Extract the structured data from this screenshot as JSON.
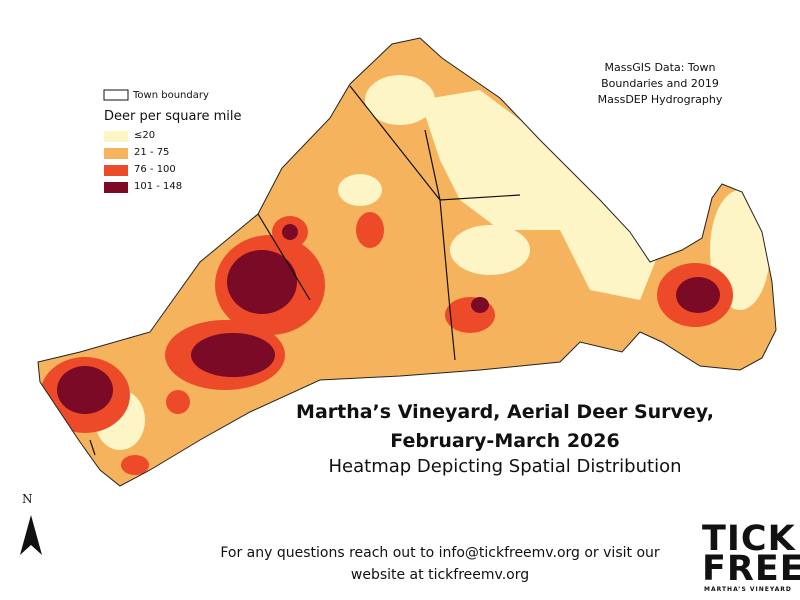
{
  "map": {
    "title_lines": [
      "Martha’s Vineyard, Aerial Deer Survey,",
      "February-March 2026"
    ],
    "subtitle": "Heatmap Depicting Spatial Distribution",
    "source": "MassGIS Data: Town Boundaries and 2019 MassDEP Hydrography",
    "legend": {
      "boundary_label": "Town boundary",
      "title": "Deer per square mile",
      "items": [
        {
          "label": "≤20",
          "color": "#fdf5c6"
        },
        {
          "label": "21 - 75",
          "color": "#f5b35e"
        },
        {
          "label": "76 - 100",
          "color": "#ec4a28"
        },
        {
          "label": "101 - 148",
          "color": "#7a0a25"
        }
      ]
    },
    "north": "N",
    "contact": "For any questions reach out to info@tickfreemv.org or visit our website at tickfreemv.org",
    "logo": {
      "line1": "TICK",
      "line2": "FREE",
      "tagline": "MARTHA’S VINEYARD"
    }
  }
}
